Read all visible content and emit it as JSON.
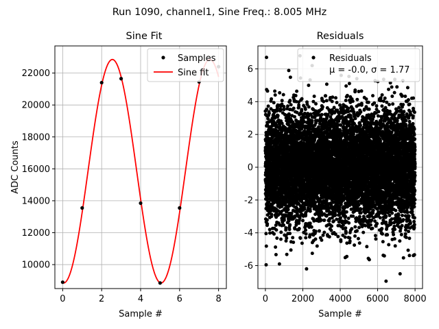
{
  "suptitle": "Run 1090, channel1, Sine Freq.: 8.005 MHz",
  "chart_data": [
    {
      "type": "line",
      "title": "Sine Fit",
      "xlabel": "Sample #",
      "ylabel": "ADC Counts",
      "xlim": [
        -0.4,
        8.4
      ],
      "ylim": [
        8500,
        23700
      ],
      "xticks": [
        0,
        2,
        4,
        6,
        8
      ],
      "yticks": [
        10000,
        12000,
        14000,
        16000,
        18000,
        20000,
        22000
      ],
      "grid": true,
      "legend_position": "upper-right",
      "series": [
        {
          "name": "Samples",
          "kind": "scatter",
          "color": "#000000",
          "x": [
            0,
            1,
            2,
            3,
            4,
            5,
            6,
            7,
            8
          ],
          "y": [
            8900,
            13550,
            21400,
            21650,
            13850,
            8850,
            13550,
            21450,
            22400
          ]
        },
        {
          "name": "Sine fit",
          "kind": "line",
          "color": "#ff0000",
          "model": {
            "offset": 15850,
            "amplitude": 7000,
            "period": 5.0,
            "phase_peak_x": 2.55,
            "x_start": 0,
            "x_end": 8
          }
        }
      ]
    },
    {
      "type": "scatter",
      "title": "Residuals",
      "xlabel": "Sample #",
      "xlim": [
        -400,
        8400
      ],
      "ylim": [
        -7.4,
        7.4
      ],
      "xticks": [
        0,
        2000,
        4000,
        6000,
        8000
      ],
      "yticks": [
        -6,
        -4,
        -2,
        0,
        2,
        4,
        6
      ],
      "grid": true,
      "legend_position": "upper-right",
      "legend_lines": [
        "Residuals",
        "μ = -0.0, σ = 1.77"
      ],
      "series": [
        {
          "name": "Residuals",
          "color": "#000000",
          "n_points": 8000,
          "mean": 0.0,
          "sigma": 1.77,
          "notable_points": [
            {
              "x": 60,
              "y": 6.7
            },
            {
              "x": 1850,
              "y": 6.8
            },
            {
              "x": 2500,
              "y": 6.2
            },
            {
              "x": 6450,
              "y": -6.95
            },
            {
              "x": 7200,
              "y": -6.5
            },
            {
              "x": 2200,
              "y": -6.2
            },
            {
              "x": 40,
              "y": -5.95
            },
            {
              "x": 750,
              "y": -5.9
            },
            {
              "x": 1250,
              "y": 5.9
            }
          ]
        }
      ]
    }
  ]
}
